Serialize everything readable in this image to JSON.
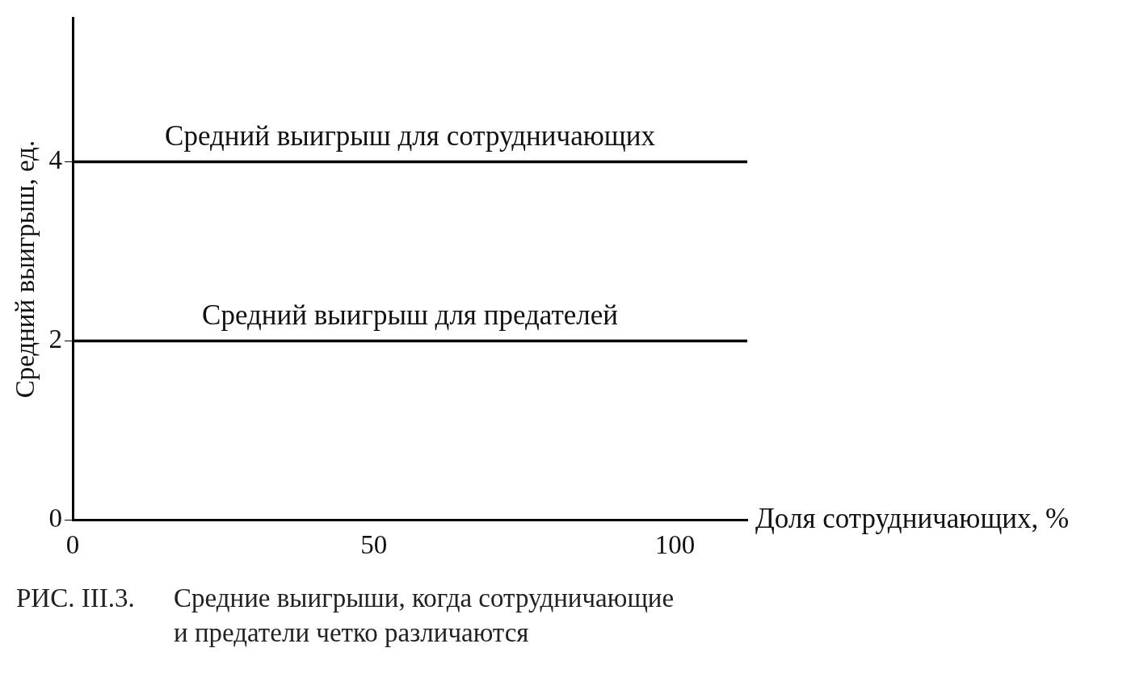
{
  "chart_data": {
    "type": "line",
    "xlabel": "Доля сотрудничающих, %",
    "ylabel": "Средний выигрыш, ед.",
    "x": [
      0,
      112
    ],
    "xlim": [
      0,
      112
    ],
    "xticks": [
      0,
      50,
      100
    ],
    "ylim": [
      0,
      5.6
    ],
    "yticks": [
      0,
      2,
      4
    ],
    "series": [
      {
        "name": "Средний выигрыш для сотрудничающих",
        "color": "#000000",
        "values": [
          4,
          4
        ]
      },
      {
        "name": "Средний выигрыш для предателей",
        "color": "#000000",
        "values": [
          2,
          2
        ]
      }
    ],
    "grid": false,
    "legend": false,
    "marker": "none",
    "line_style": "solid",
    "annotations": [
      "РИС. III.3.\tСредние выигрыши, когда сотрудничающие\nи предатели четко различаются"
    ]
  }
}
